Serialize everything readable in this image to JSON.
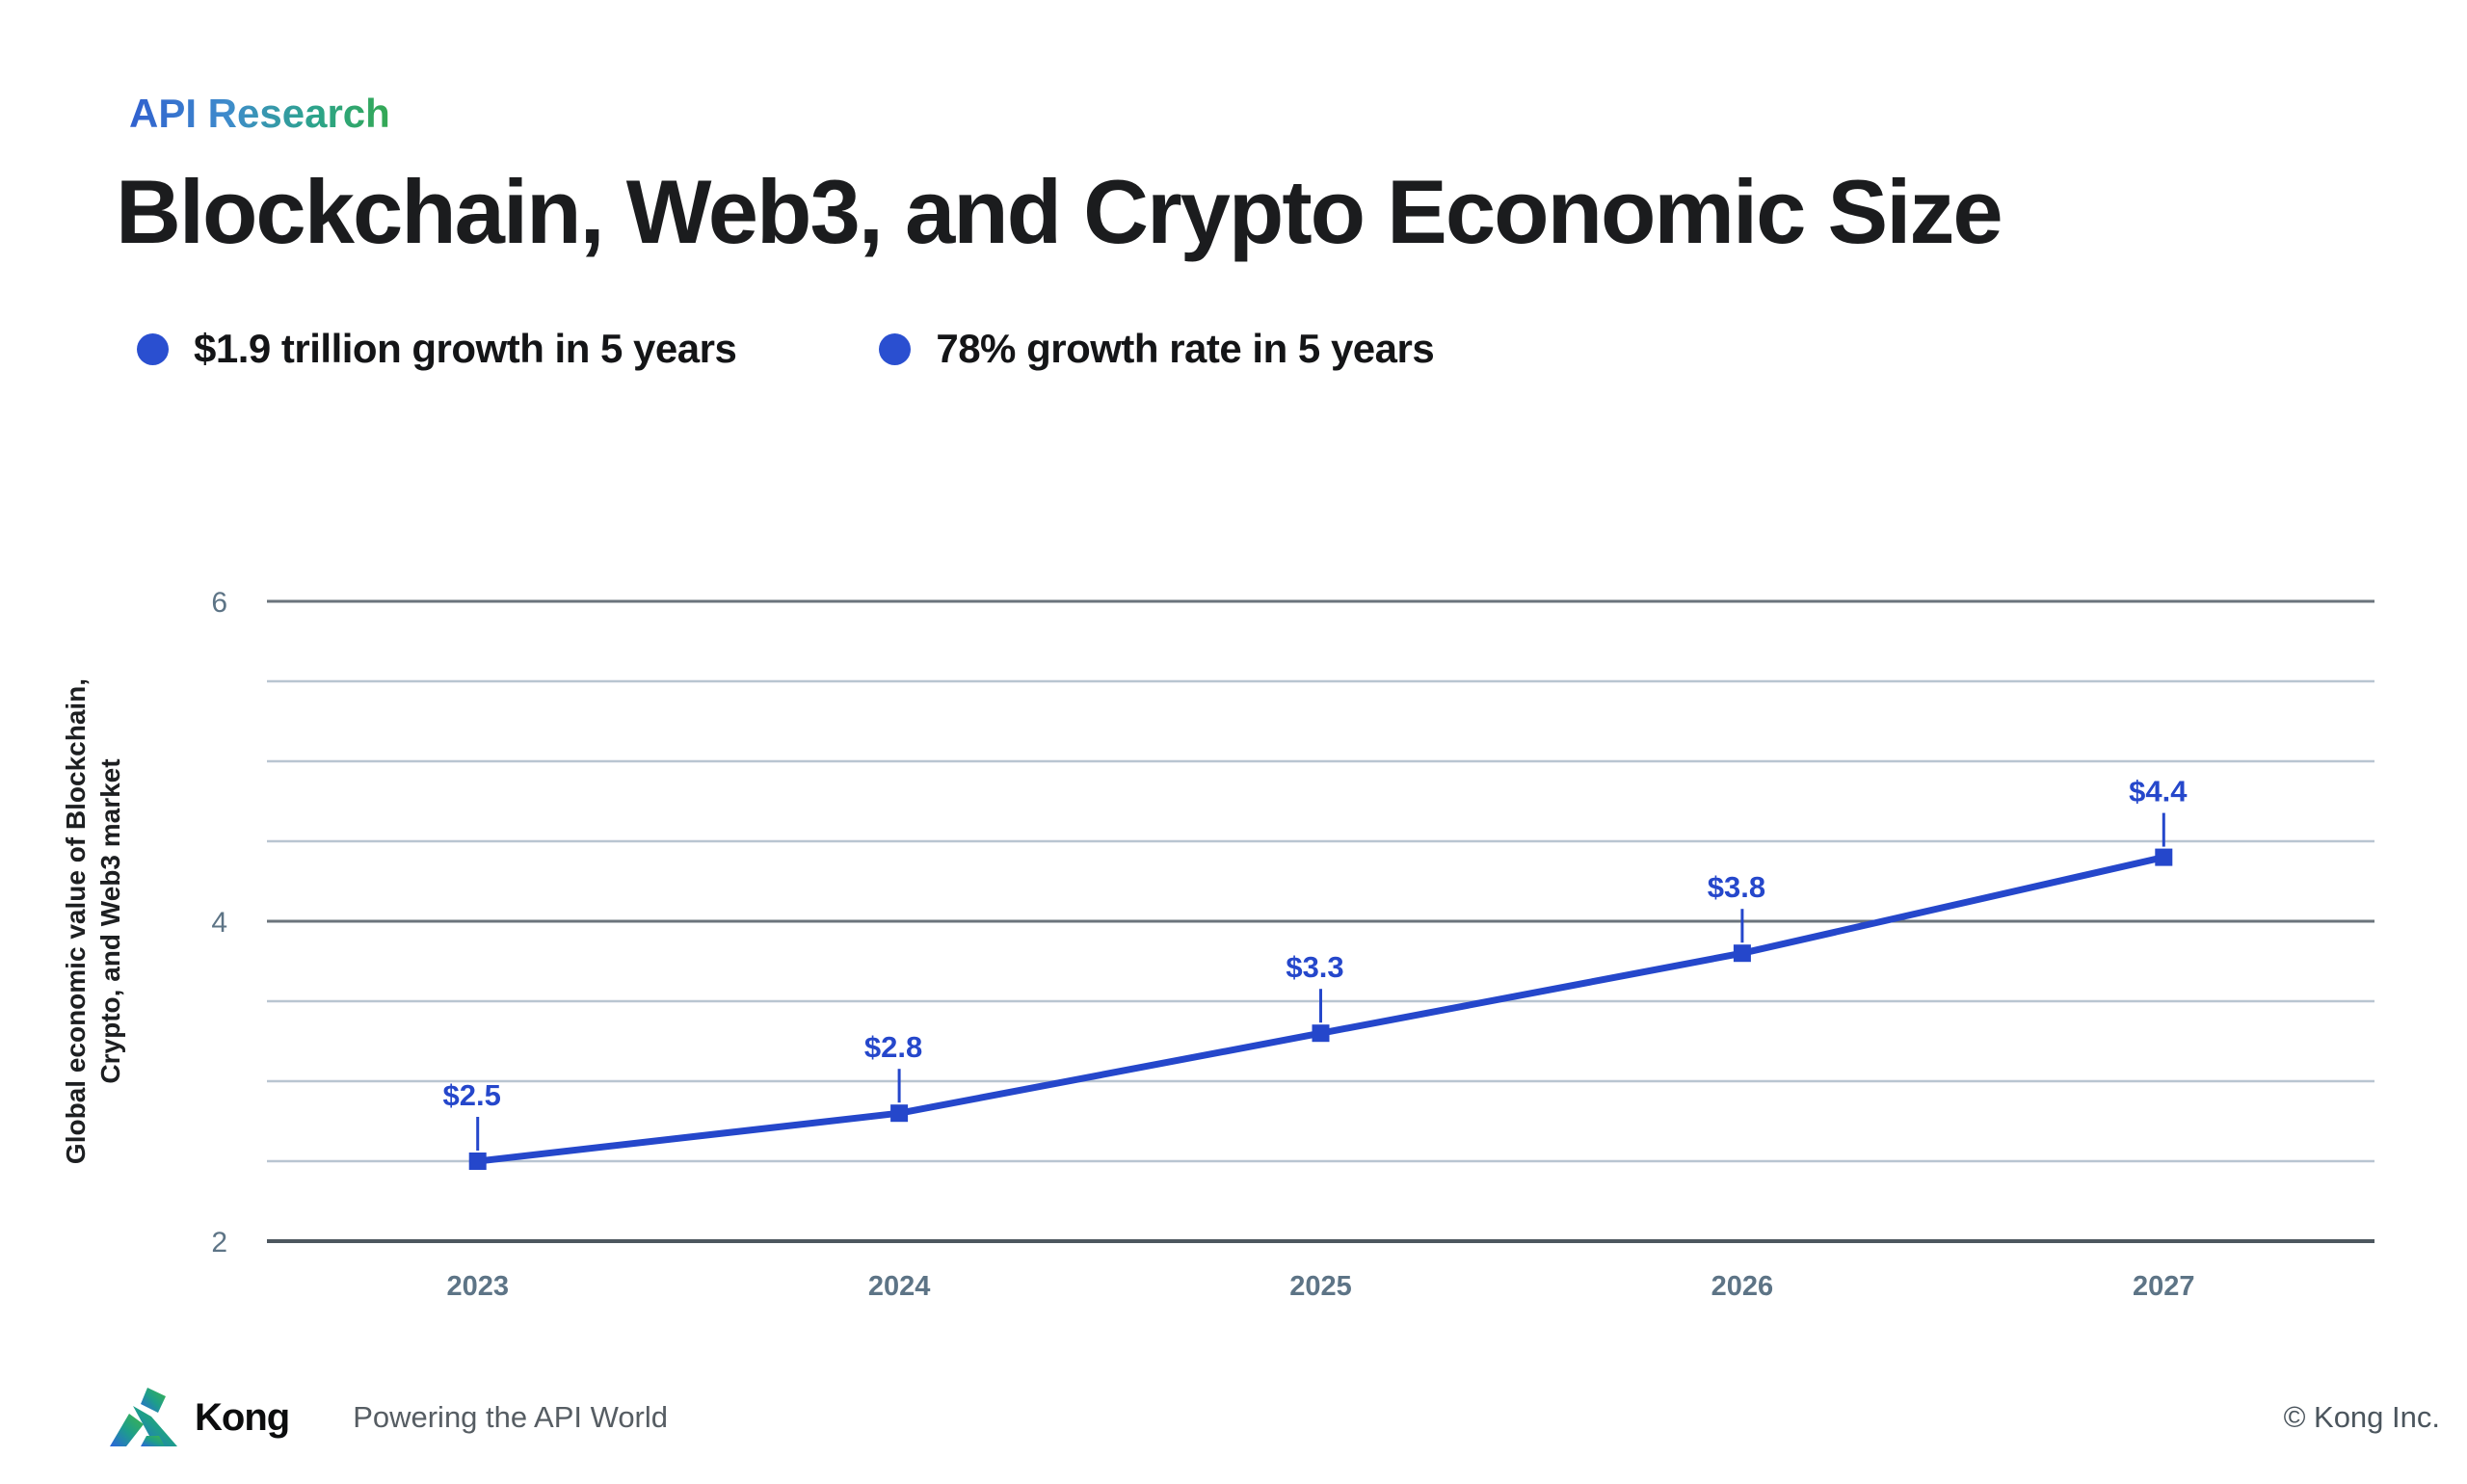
{
  "header": {
    "eyebrow": "API Research",
    "title": "Blockchain, Web3, and Crypto Economic Size"
  },
  "highlights": [
    {
      "label": "$1.9 trillion growth in 5 years"
    },
    {
      "label": "78% growth rate in 5 years"
    }
  ],
  "chart_data": {
    "type": "line",
    "categories": [
      "2023",
      "2024",
      "2025",
      "2026",
      "2027"
    ],
    "values": [
      2.5,
      2.8,
      3.3,
      3.8,
      4.4
    ],
    "point_labels": [
      "$2.5",
      "$2.8",
      "$3.3",
      "$3.8",
      "$4.4"
    ],
    "title": "",
    "xlabel": "",
    "ylabel_lines": [
      "Global economic value of Blockchain,",
      "Crypto, and Web3 market"
    ],
    "ylim": [
      2,
      6
    ],
    "grid_step": 0.5,
    "labeled_yticks": [
      2,
      4,
      6
    ],
    "legend_position": "none",
    "grid": true,
    "series_color": "#2547cb",
    "point_label_color": "#2547cb",
    "minor_grid_color": "#b9c5d1",
    "major_grid_color": "#6b747c",
    "baseline_color": "#4d575f",
    "tick_label_color": "#5d7486",
    "axis_title_color": "#1d1f21"
  },
  "footer": {
    "brand": "Kong",
    "tagline": "Powering the API World",
    "copyright": "©  Kong Inc."
  },
  "icons": {
    "bullet": "filled-circle",
    "logo": "kong-gorilla-mark"
  },
  "colors": {
    "accent_blue": "#2a4fd0",
    "brand_gradient_start": "#3060cf",
    "brand_gradient_end": "#34a853",
    "title_text": "#1b1c1e",
    "footer_text": "#565d63"
  }
}
